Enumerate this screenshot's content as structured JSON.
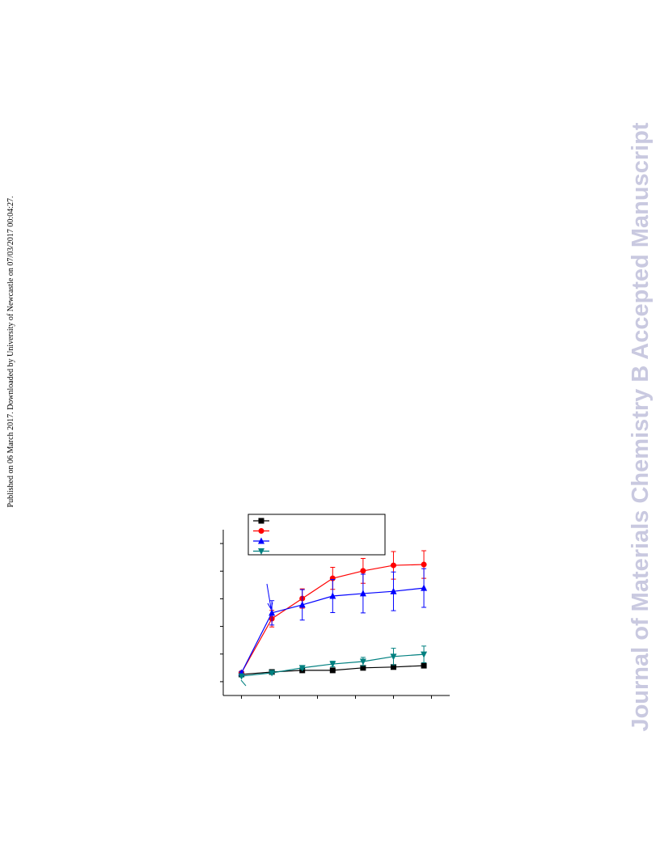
{
  "side_note": "Published on 06 March 2017. Downloaded by University of Newcastle on 07/03/2017 00:04:27.",
  "watermark": "Journal of Materials Chemistry B Accepted Manuscript",
  "chart_data": {
    "type": "line",
    "x": [
      0,
      4,
      8,
      12,
      16,
      20,
      24
    ],
    "xlim": [
      -2.4,
      27.4
    ],
    "xticks": [
      0,
      5,
      10,
      15,
      20,
      25
    ],
    "ylim": [
      -5,
      55
    ],
    "yticks": [
      0,
      10,
      20,
      30,
      40,
      50
    ],
    "series": [
      {
        "color": "#000000",
        "marker": "square",
        "values": [
          2.6,
          3.5,
          4.1,
          4.1,
          5.0,
          5.3,
          5.8
        ],
        "errors": [
          0.3,
          0.3,
          0.3,
          0.3,
          0.3,
          0.3,
          0.3
        ]
      },
      {
        "color": "#ff0000",
        "marker": "circle",
        "values": [
          3.2,
          22.8,
          30.1,
          37.4,
          40.1,
          42.1,
          42.4
        ],
        "errors": [
          0.5,
          3,
          3.5,
          4,
          4.5,
          5,
          5
        ]
      },
      {
        "color": "#0000ff",
        "marker": "triangle-up",
        "values": [
          3.2,
          24.9,
          27.8,
          31.0,
          31.9,
          32.7,
          33.9
        ],
        "errors": [
          0.5,
          4.4,
          5.5,
          6,
          7,
          7,
          7
        ]
      },
      {
        "color": "#008080",
        "marker": "triangle-down",
        "values": [
          2.0,
          3.2,
          5.0,
          6.4,
          7.3,
          9.1,
          9.9
        ],
        "errors": [
          0.3,
          0.5,
          0.5,
          1,
          1.5,
          3,
          3
        ]
      }
    ]
  }
}
